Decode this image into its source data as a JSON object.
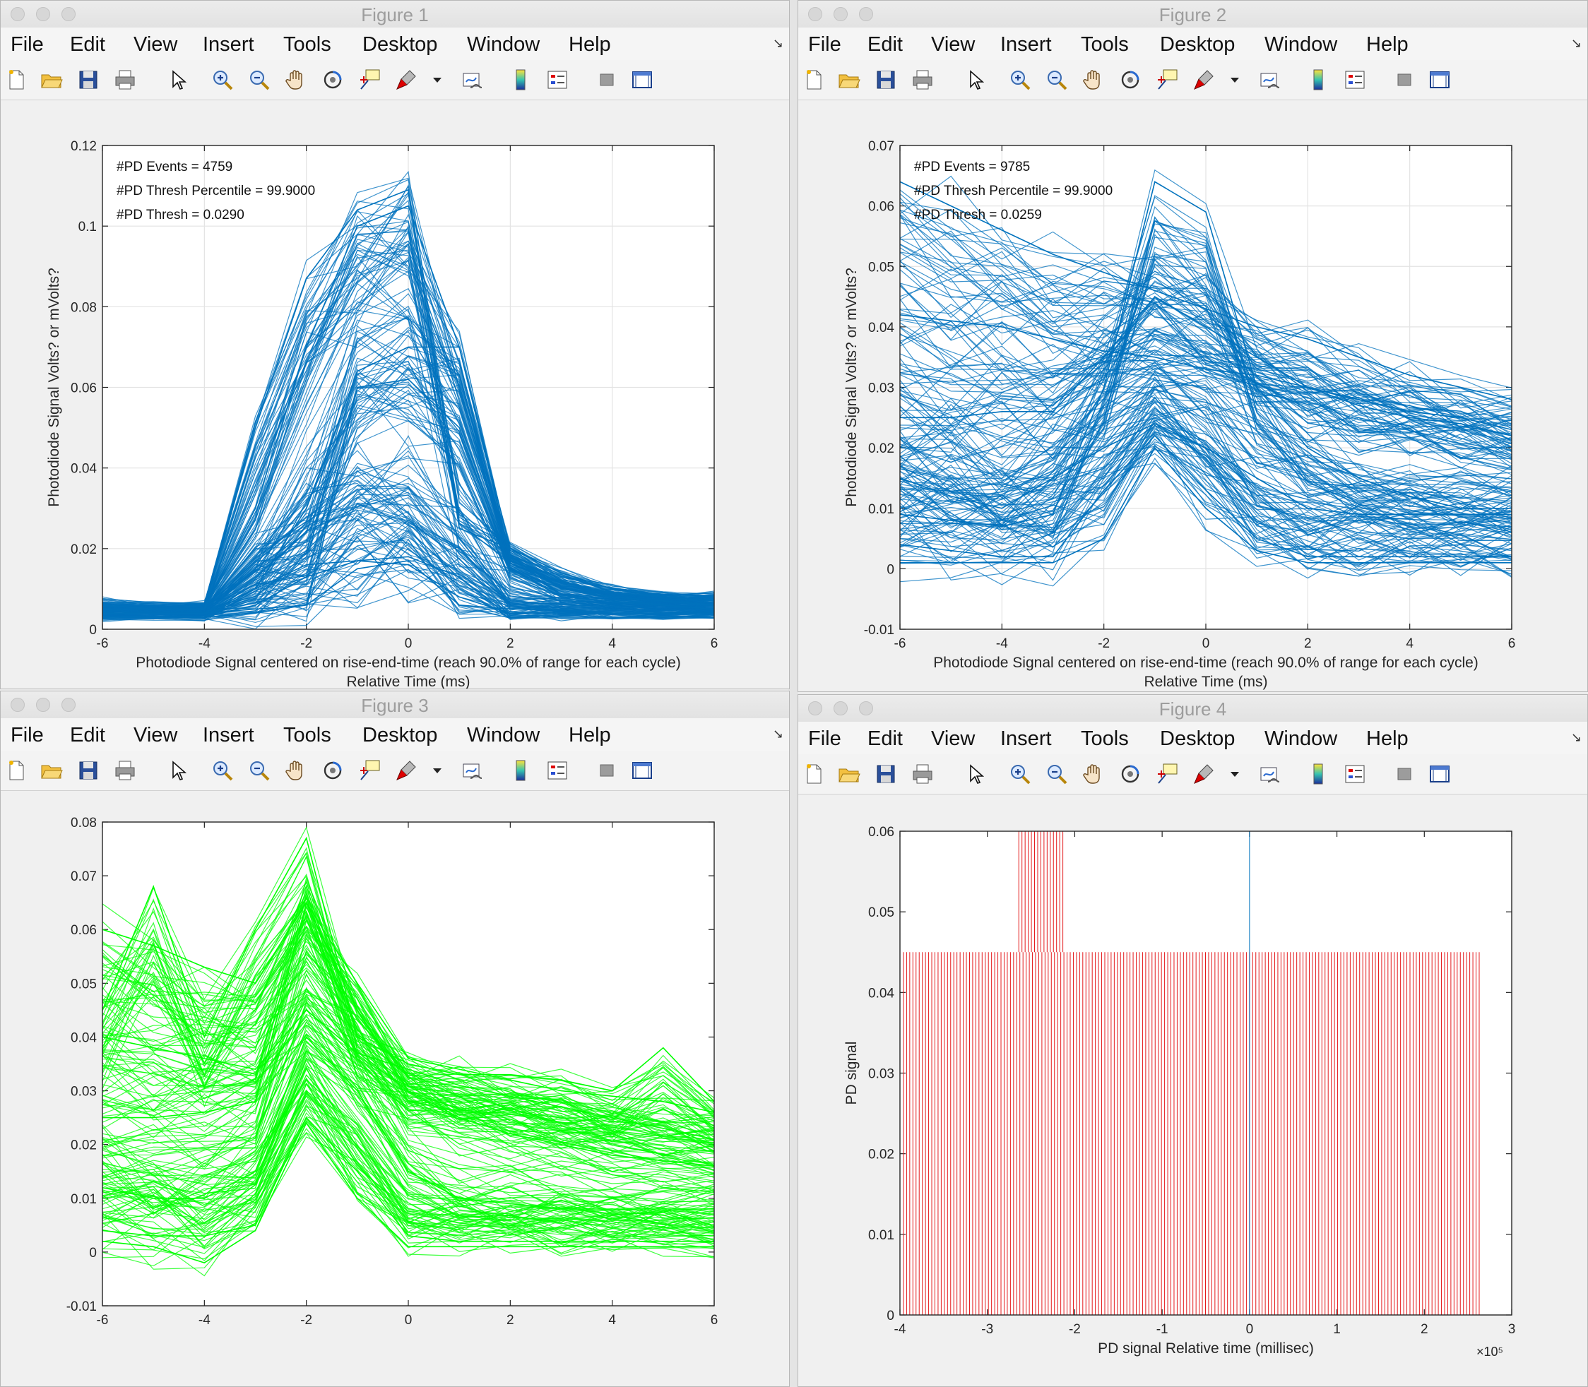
{
  "menu": [
    "File",
    "Edit",
    "View",
    "Insert",
    "Tools",
    "Desktop",
    "Window",
    "Help"
  ],
  "toolbar_icons": [
    "new-file-icon",
    "open-folder-icon",
    "save-icon",
    "print-icon",
    "pointer-arrow-icon",
    "zoom-in-icon",
    "zoom-out-icon",
    "pan-hand-icon",
    "rotate-3d-icon",
    "data-cursor-icon",
    "brush-icon",
    "brush-dropdown-icon",
    "link-plot-icon",
    "colorbar-icon",
    "legend-icon",
    "hide-plot-tools-icon",
    "show-plot-tools-icon"
  ],
  "figures": [
    {
      "id": "fig1",
      "window_title": "Figure 1",
      "annotations": [
        "#PD Events = 4759",
        "#PD Thresh Percentile = 99.9000",
        "#PD Thresh = 0.0290"
      ],
      "xlabel_lines": [
        "Photodiode Signal centered on rise-end-time (reach 90.0% of range for each cycle)",
        "Relative Time (ms)"
      ],
      "ylabel": "Photodiode Signal Volts? or mVolts?",
      "xticks": [
        "-6",
        "-4",
        "-2",
        "0",
        "2",
        "4",
        "6"
      ],
      "yticks": [
        "0",
        "0.02",
        "0.04",
        "0.06",
        "0.08",
        "0.1",
        "0.12"
      ],
      "exponent": ""
    },
    {
      "id": "fig2",
      "window_title": "Figure 2",
      "annotations": [
        "#PD Events = 9785",
        "#PD Thresh Percentile = 99.9000",
        "#PD Thresh = 0.0259"
      ],
      "xlabel_lines": [
        "Photodiode Signal centered on rise-end-time (reach 90.0% of range for each cycle)",
        "Relative Time (ms)"
      ],
      "ylabel": "Photodiode Signal Volts? or mVolts?",
      "xticks": [
        "-6",
        "-4",
        "-2",
        "0",
        "2",
        "4",
        "6"
      ],
      "yticks": [
        "-0.01",
        "0",
        "0.01",
        "0.02",
        "0.03",
        "0.04",
        "0.05",
        "0.06",
        "0.07"
      ],
      "exponent": ""
    },
    {
      "id": "fig3",
      "window_title": "Figure 3",
      "annotations": [],
      "xlabel_lines": [],
      "ylabel": "",
      "xticks": [
        "-6",
        "-4",
        "-2",
        "0",
        "2",
        "4",
        "6"
      ],
      "yticks": [
        "-0.01",
        "0",
        "0.01",
        "0.02",
        "0.03",
        "0.04",
        "0.05",
        "0.06",
        "0.07",
        "0.08"
      ],
      "exponent": ""
    },
    {
      "id": "fig4",
      "window_title": "Figure 4",
      "annotations": [],
      "xlabel_lines": [
        "PD signal Relative time (millisec)"
      ],
      "ylabel": "PD signal",
      "xticks": [
        "-4",
        "-3",
        "-2",
        "-1",
        "0",
        "1",
        "2",
        "3"
      ],
      "yticks": [
        "0",
        "0.01",
        "0.02",
        "0.03",
        "0.04",
        "0.05",
        "0.06"
      ],
      "exponent": "×10⁵"
    }
  ],
  "chart_data": [
    {
      "figure": "Figure 1",
      "type": "line",
      "x": [
        -6,
        -5,
        -4,
        -3,
        -2,
        -1,
        0,
        1,
        2,
        3,
        4,
        5,
        6
      ],
      "xlim": [
        -6,
        6
      ],
      "ylim": [
        0,
        0.12
      ],
      "grid": true,
      "color": "#0072BD",
      "band_low": [
        0.002,
        0.002,
        0.002,
        0.002,
        0.002,
        0.003,
        0.003,
        0.003,
        0.002,
        0.002,
        0.002,
        0.002,
        0.002
      ],
      "band_high": [
        0.012,
        0.011,
        0.011,
        0.052,
        0.088,
        0.105,
        0.11,
        0.073,
        0.021,
        0.016,
        0.013,
        0.012,
        0.012
      ],
      "representative_series": [
        {
          "values": [
            0.006,
            0.005,
            0.005,
            0.05,
            0.087,
            0.104,
            0.109,
            0.025,
            0.02,
            0.014,
            0.01,
            0.008,
            0.008
          ]
        },
        {
          "values": [
            0.005,
            0.005,
            0.005,
            0.03,
            0.07,
            0.1,
            0.105,
            0.07,
            0.02,
            0.012,
            0.009,
            0.008,
            0.007
          ]
        },
        {
          "values": [
            0.004,
            0.004,
            0.004,
            0.01,
            0.03,
            0.064,
            0.07,
            0.07,
            0.018,
            0.01,
            0.008,
            0.007,
            0.006
          ]
        },
        {
          "values": [
            0.004,
            0.004,
            0.004,
            0.005,
            0.006,
            0.06,
            0.062,
            0.05,
            0.015,
            0.008,
            0.007,
            0.006,
            0.005
          ]
        },
        {
          "values": [
            0.003,
            0.003,
            0.003,
            0.01,
            0.016,
            0.017,
            0.018,
            0.013,
            0.003,
            0.003,
            0.003,
            0.003,
            0.003
          ]
        },
        {
          "values": [
            0.003,
            0.003,
            0.003,
            0.006,
            0.013,
            0.017,
            0.016,
            0.008,
            0.004,
            0.004,
            0.004,
            0.004,
            0.004
          ]
        },
        {
          "values": [
            0.003,
            0.003,
            0.003,
            0.004,
            0.006,
            0.015,
            0.017,
            0.006,
            0.005,
            0.005,
            0.004,
            0.004,
            0.004
          ]
        }
      ]
    },
    {
      "figure": "Figure 2",
      "type": "line",
      "x": [
        -6,
        -5,
        -4,
        -3,
        -2,
        -1,
        0,
        1,
        2,
        3,
        4,
        5,
        6
      ],
      "xlim": [
        -6,
        6
      ],
      "ylim": [
        -0.01,
        0.07
      ],
      "grid": true,
      "color": "#0072BD",
      "band_low": [
        0.001,
        0.001,
        0.001,
        0.002,
        0.01,
        0.018,
        0.012,
        0.005,
        0.002,
        0.001,
        0.001,
        0.001,
        0.001
      ],
      "band_high": [
        0.064,
        0.059,
        0.055,
        0.052,
        0.05,
        0.057,
        0.059,
        0.043,
        0.04,
        0.037,
        0.034,
        0.031,
        0.03
      ],
      "representative_series": [
        {
          "values": [
            0.064,
            0.06,
            0.056,
            0.052,
            0.049,
            0.046,
            0.043,
            0.04,
            0.038,
            0.035,
            0.032,
            0.03,
            0.028
          ]
        },
        {
          "values": [
            0.042,
            0.041,
            0.04,
            0.038,
            0.036,
            0.035,
            0.033,
            0.032,
            0.03,
            0.028,
            0.026,
            0.025,
            0.023
          ]
        },
        {
          "values": [
            0.025,
            0.025,
            0.026,
            0.026,
            0.035,
            0.045,
            0.04,
            0.035,
            0.03,
            0.027,
            0.025,
            0.024,
            0.022
          ]
        },
        {
          "values": [
            0.015,
            0.012,
            0.01,
            0.015,
            0.02,
            0.024,
            0.02,
            0.015,
            0.01,
            0.009,
            0.009,
            0.009,
            0.009
          ]
        },
        {
          "values": [
            0.004,
            0.003,
            0.002,
            0.002,
            0.013,
            0.022,
            0.013,
            0.005,
            0.002,
            0.002,
            0.002,
            0.002,
            0.002
          ]
        },
        {
          "values": [
            0.009,
            0.008,
            0.007,
            0.009,
            0.03,
            0.064,
            0.059,
            0.03,
            0.02,
            0.015,
            0.012,
            0.01,
            0.01
          ]
        },
        {
          "values": [
            0.001,
            0.001,
            0.001,
            0.001,
            0.005,
            0.02,
            0.01,
            0.003,
            0.001,
            0.001,
            0.001,
            0.001,
            0.001
          ]
        }
      ]
    },
    {
      "figure": "Figure 3",
      "type": "line",
      "x": [
        -6,
        -5,
        -4,
        -3,
        -2,
        -1,
        0,
        1,
        2,
        3,
        4,
        5,
        6
      ],
      "xlim": [
        -6,
        6
      ],
      "ylim": [
        -0.01,
        0.08
      ],
      "grid": false,
      "color": "#00FF00",
      "band_low": [
        0.001,
        0.001,
        0.0,
        0.005,
        0.024,
        0.01,
        0.001,
        0.001,
        0.001,
        0.001,
        0.001,
        0.001,
        0.001
      ],
      "band_high": [
        0.06,
        0.056,
        0.052,
        0.052,
        0.07,
        0.055,
        0.036,
        0.033,
        0.031,
        0.031,
        0.028,
        0.027,
        0.026
      ],
      "representative_series": [
        {
          "values": [
            0.06,
            0.057,
            0.053,
            0.05,
            0.065,
            0.05,
            0.036,
            0.034,
            0.032,
            0.03,
            0.029,
            0.028,
            0.026
          ]
        },
        {
          "values": [
            0.04,
            0.038,
            0.036,
            0.034,
            0.045,
            0.037,
            0.034,
            0.031,
            0.029,
            0.027,
            0.025,
            0.023,
            0.021
          ]
        },
        {
          "values": [
            0.025,
            0.025,
            0.026,
            0.028,
            0.065,
            0.045,
            0.03,
            0.025,
            0.022,
            0.02,
            0.018,
            0.017,
            0.016
          ]
        },
        {
          "values": [
            0.012,
            0.01,
            0.01,
            0.015,
            0.04,
            0.03,
            0.015,
            0.01,
            0.009,
            0.008,
            0.008,
            0.008,
            0.008
          ]
        },
        {
          "values": [
            0.004,
            0.003,
            0.003,
            0.005,
            0.025,
            0.015,
            0.003,
            0.002,
            0.002,
            0.002,
            0.002,
            0.002,
            0.002
          ]
        },
        {
          "values": [
            0.045,
            0.068,
            0.04,
            0.06,
            0.077,
            0.04,
            0.035,
            0.033,
            0.033,
            0.032,
            0.03,
            0.038,
            0.028
          ]
        },
        {
          "values": [
            0.002,
            0.001,
            -0.002,
            0.004,
            0.024,
            0.01,
            0.001,
            0.001,
            0.001,
            0.001,
            0.001,
            0.001,
            0.001
          ]
        }
      ]
    },
    {
      "figure": "Figure 4",
      "type": "line",
      "xlim": [
        -400000,
        300000
      ],
      "ylim": [
        0,
        0.06
      ],
      "grid": false,
      "stem_color": "#E41A1C",
      "stem_x_range": [
        -396000,
        266000
      ],
      "stem_spacing": 3600,
      "stem_height": 0.045,
      "tall_stem_x_range": [
        -264000,
        -211000
      ],
      "tall_stem_spacing": 3600,
      "tall_stem_height": 0.06,
      "blue_trace": {
        "x": 0,
        "ymin": 0,
        "ymax": 0.06,
        "color": "#0072BD"
      }
    }
  ]
}
